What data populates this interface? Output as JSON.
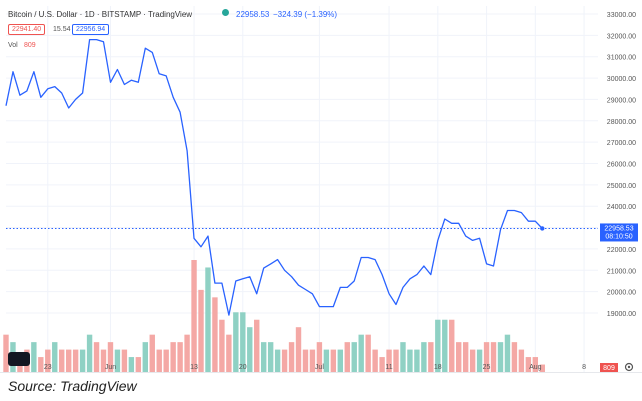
{
  "header": {
    "symbol_title": "Bitcoin / U.S. Dollar · 1D · BITSTAMP · TradingView",
    "price": "22958.53",
    "change": "−324.39 (−1.39%)",
    "bid": "22941.40",
    "spread": "15.54",
    "ask": "22956.94",
    "vol_label": "Vol",
    "vol_value": "809"
  },
  "colors": {
    "line": "#2962ff",
    "vol_up": "#8fd1c4",
    "vol_down": "#f4a8a5",
    "grid": "#f0f3fa",
    "bid": "#ef5350",
    "last_price_tag": "#2962ff",
    "vol_tag": "#ef5350"
  },
  "source_caption": "Source: TradingView",
  "chart_data": {
    "type": "line",
    "title": "Bitcoin / U.S. Dollar · 1D · BITSTAMP",
    "x_tick_labels": [
      "23",
      "Jun",
      "13",
      "20",
      "Jul",
      "11",
      "18",
      "25",
      "Aug",
      "8"
    ],
    "x_range": [
      "2022-05-17",
      "2022-08-10"
    ],
    "ylim": [
      18000,
      33000
    ],
    "y_ticks": [
      19000,
      20000,
      21000,
      22000,
      23000,
      24000,
      25000,
      26000,
      27000,
      28000,
      29000,
      30000,
      31000,
      32000,
      33000
    ],
    "y_tick_labels": [
      "19000.00",
      "20000.00",
      "21000.00",
      "22000.00",
      "23000.00",
      "24000.00",
      "25000.00",
      "26000.00",
      "27000.00",
      "28000.00",
      "29000.00",
      "30000.00",
      "31000.00",
      "32000.00",
      "33000.00"
    ],
    "last_price_label": "22958.53",
    "countdown_label": "08:10:50",
    "volume_tag_label": "809",
    "grid": true,
    "series": [
      {
        "name": "BTCUSD close",
        "x": [
          "2022-05-17",
          "2022-05-18",
          "2022-05-19",
          "2022-05-20",
          "2022-05-21",
          "2022-05-22",
          "2022-05-23",
          "2022-05-24",
          "2022-05-25",
          "2022-05-26",
          "2022-05-27",
          "2022-05-28",
          "2022-05-29",
          "2022-05-30",
          "2022-05-31",
          "2022-06-01",
          "2022-06-02",
          "2022-06-03",
          "2022-06-04",
          "2022-06-05",
          "2022-06-06",
          "2022-06-07",
          "2022-06-08",
          "2022-06-09",
          "2022-06-10",
          "2022-06-11",
          "2022-06-12",
          "2022-06-13",
          "2022-06-14",
          "2022-06-15",
          "2022-06-16",
          "2022-06-17",
          "2022-06-18",
          "2022-06-19",
          "2022-06-20",
          "2022-06-21",
          "2022-06-22",
          "2022-06-23",
          "2022-06-24",
          "2022-06-25",
          "2022-06-26",
          "2022-06-27",
          "2022-06-28",
          "2022-06-29",
          "2022-06-30",
          "2022-07-01",
          "2022-07-02",
          "2022-07-03",
          "2022-07-04",
          "2022-07-05",
          "2022-07-06",
          "2022-07-07",
          "2022-07-08",
          "2022-07-09",
          "2022-07-10",
          "2022-07-11",
          "2022-07-12",
          "2022-07-13",
          "2022-07-14",
          "2022-07-15",
          "2022-07-16",
          "2022-07-17",
          "2022-07-18",
          "2022-07-19",
          "2022-07-20",
          "2022-07-21",
          "2022-07-22",
          "2022-07-23",
          "2022-07-24",
          "2022-07-25",
          "2022-07-26",
          "2022-07-27",
          "2022-07-28",
          "2022-07-29",
          "2022-07-30",
          "2022-07-31",
          "2022-08-01",
          "2022-08-02"
        ],
        "values": [
          28700,
          30300,
          29200,
          29400,
          30300,
          29100,
          29500,
          29600,
          29300,
          28600,
          29000,
          29300,
          31800,
          31800,
          31700,
          29800,
          30400,
          29700,
          29900,
          29800,
          31400,
          31200,
          30200,
          30100,
          29100,
          28400,
          26600,
          22500,
          22100,
          22600,
          20400,
          20400,
          18900,
          20500,
          20600,
          20700,
          19900,
          21100,
          21300,
          21500,
          21000,
          20700,
          20300,
          20100,
          19900,
          19300,
          19300,
          19300,
          20200,
          20200,
          20500,
          21600,
          21600,
          21500,
          20800,
          19900,
          19400,
          20200,
          20600,
          20800,
          21200,
          20800,
          22400,
          23400,
          23200,
          23200,
          22600,
          22400,
          22500,
          21300,
          21200,
          22900,
          23800,
          23800,
          23700,
          23300,
          23300,
          22958.53
        ]
      }
    ],
    "volume": {
      "name": "Vol",
      "values": [
        5,
        4,
        2,
        3,
        4,
        2,
        3,
        4,
        3,
        3,
        3,
        3,
        5,
        4,
        3,
        4,
        3,
        3,
        2,
        2,
        4,
        5,
        3,
        3,
        4,
        4,
        5,
        15,
        11,
        14,
        10,
        7,
        5,
        8,
        8,
        6,
        7,
        4,
        4,
        3,
        3,
        4,
        6,
        3,
        3,
        4,
        3,
        3,
        3,
        4,
        4,
        5,
        5,
        3,
        2,
        3,
        3,
        4,
        3,
        3,
        4,
        4,
        7,
        7,
        7,
        4,
        4,
        3,
        3,
        4,
        4,
        4,
        5,
        4,
        3,
        2,
        2,
        1
      ],
      "up": [
        false,
        true,
        false,
        false,
        true,
        false,
        false,
        true,
        false,
        false,
        false,
        true,
        true,
        false,
        false,
        false,
        true,
        false,
        true,
        false,
        true,
        false,
        false,
        false,
        false,
        false,
        false,
        false,
        false,
        true,
        false,
        false,
        false,
        true,
        true,
        true,
        false,
        true,
        true,
        true,
        false,
        false,
        false,
        false,
        false,
        false,
        true,
        false,
        true,
        false,
        true,
        true,
        false,
        false,
        false,
        false,
        false,
        true,
        true,
        true,
        true,
        false,
        true,
        true,
        false,
        false,
        false,
        false,
        true,
        false,
        false,
        true,
        true,
        false,
        false,
        false,
        false,
        false
      ]
    }
  }
}
